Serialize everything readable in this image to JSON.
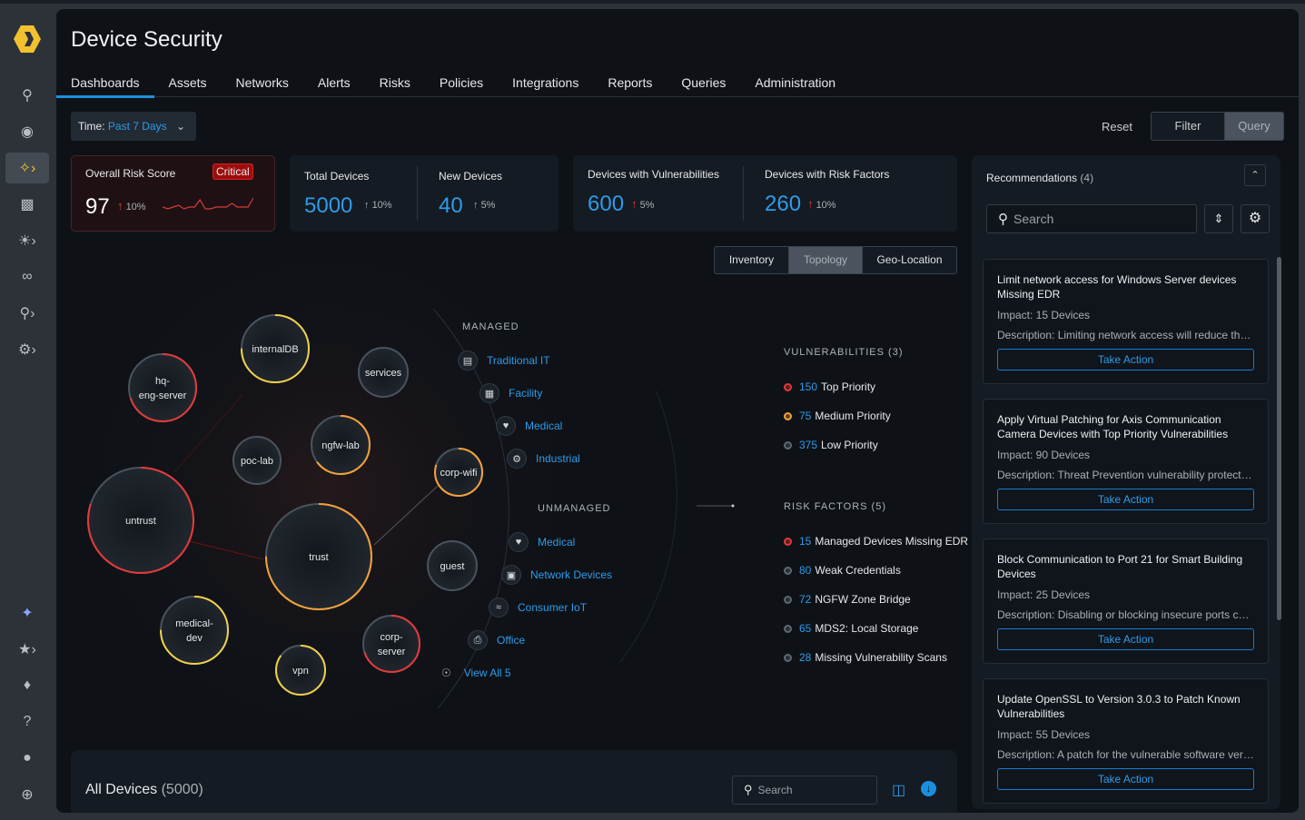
{
  "app": {
    "title": "Device Security"
  },
  "colors": {
    "accent": "#2e9bea",
    "critical": "#e5393a",
    "high": "#f5a13a",
    "medium": "#f2d04a",
    "low": "#5d6873",
    "brand": "#f2c12e"
  },
  "sidebar": {
    "items": [
      {
        "icon": "search-icon"
      },
      {
        "icon": "radar-icon"
      },
      {
        "icon": "activity-icon",
        "active": true
      },
      {
        "icon": "report-icon"
      },
      {
        "icon": "alert-light-icon"
      },
      {
        "icon": "binoculars-icon"
      },
      {
        "icon": "search-settings-icon"
      },
      {
        "icon": "gear-icon"
      },
      {
        "icon": "sparkle-icon"
      },
      {
        "icon": "star-icon"
      },
      {
        "icon": "bell-icon"
      },
      {
        "icon": "help-icon"
      },
      {
        "icon": "user-icon"
      },
      {
        "icon": "expand-icon"
      }
    ]
  },
  "tabs": [
    "Dashboards",
    "Assets",
    "Networks",
    "Alerts",
    "Risks",
    "Policies",
    "Integrations",
    "Reports",
    "Queries",
    "Administration"
  ],
  "toolbar": {
    "time_label": "Time:",
    "time_value": "Past 7 Days",
    "reset": "Reset",
    "filter": "Filter",
    "query": "Query"
  },
  "kpis": {
    "risk": {
      "label": "Overall Risk Score",
      "badge": "Critical",
      "value": "97",
      "delta": "10%",
      "sparkline": [
        5,
        4,
        5,
        6,
        4,
        5,
        5,
        9,
        4,
        4,
        5,
        5,
        5,
        7,
        5,
        5,
        5,
        10
      ]
    },
    "total": {
      "label": "Total Devices",
      "value": "5000",
      "delta": "10%"
    },
    "new": {
      "label": "New Devices",
      "value": "40",
      "delta": "5%"
    },
    "vuln": {
      "label": "Devices with Vulnerabilities",
      "value": "600",
      "delta": "5%"
    },
    "riskf": {
      "label": "Devices with Risk Factors",
      "value": "260",
      "delta": "10%"
    }
  },
  "view_tabs": {
    "items": [
      "Inventory",
      "Topology",
      "Geo-Location"
    ],
    "active": "Topology"
  },
  "topology": {
    "nodes": [
      {
        "name": "internalDB",
        "ring": "#f2d04a",
        "fill": 0.75
      },
      {
        "name": "hq-eng-server",
        "ring": "#e5393a",
        "fill": 0.7
      },
      {
        "name": "services",
        "ring": "#5d6873",
        "fill": 0
      },
      {
        "name": "ngfw-lab",
        "ring": "#f5a13a",
        "fill": 0.65
      },
      {
        "name": "poc-lab",
        "ring": "#5d6873",
        "fill": 0
      },
      {
        "name": "corp-wifi",
        "ring": "#f5a13a",
        "fill": 0.8
      },
      {
        "name": "untrust",
        "ring": "#e5393a",
        "fill": 0.8
      },
      {
        "name": "trust",
        "ring": "#f5a13a",
        "fill": 0.75
      },
      {
        "name": "guest",
        "ring": "#5d6873",
        "fill": 0
      },
      {
        "name": "medical-dev",
        "ring": "#f2d04a",
        "fill": 0.75
      },
      {
        "name": "corp-server",
        "ring": "#e5393a",
        "fill": 0.7
      },
      {
        "name": "vpn",
        "ring": "#f2d04a",
        "fill": 0.85
      }
    ],
    "managed_label": "MANAGED",
    "managed": [
      {
        "label": "Traditional IT",
        "icon": "laptop-icon"
      },
      {
        "label": "Facility",
        "icon": "building-icon"
      },
      {
        "label": "Medical",
        "icon": "heart-icon"
      },
      {
        "label": "Industrial",
        "icon": "factory-icon"
      }
    ],
    "unmanaged_label": "UNMANAGED",
    "unmanaged": [
      {
        "label": "Medical",
        "icon": "heart-icon"
      },
      {
        "label": "Network Devices",
        "icon": "network-icon"
      },
      {
        "label": "Consumer IoT",
        "icon": "wifi-icon"
      },
      {
        "label": "Office",
        "icon": "printer-icon"
      }
    ],
    "view_all": "View All 5"
  },
  "vulnerabilities": {
    "title": "VULNERABILITIES (3)",
    "items": [
      {
        "count": "150",
        "label": "Top Priority",
        "color": "#e5393a"
      },
      {
        "count": "75",
        "label": "Medium Priority",
        "color": "#f5a13a"
      },
      {
        "count": "375",
        "label": "Low Priority",
        "color": "#5d6873"
      }
    ]
  },
  "risk_factors": {
    "title": "RISK FACTORS (5)",
    "items": [
      {
        "count": "15",
        "label": "Managed Devices Missing EDR",
        "color": "#e5393a"
      },
      {
        "count": "80",
        "label": "Weak Credentials",
        "color": "#5d6873"
      },
      {
        "count": "72",
        "label": "NGFW Zone Bridge",
        "color": "#5d6873"
      },
      {
        "count": "65",
        "label": "MDS2: Local Storage",
        "color": "#5d6873"
      },
      {
        "count": "28",
        "label": "Missing Vulnerability Scans",
        "color": "#5d6873"
      }
    ]
  },
  "recommendations": {
    "title": "Recommendations",
    "count": "(4)",
    "search_placeholder": "Search",
    "items": [
      {
        "title": "Limit network access for Windows Server devices Missing EDR",
        "impact": "Impact: 15 Devices",
        "description": "Description:  Limiting network access will reduce the attack surface",
        "action": "Take Action"
      },
      {
        "title": "Apply Virtual Patching for Axis Communication Camera Devices with Top Priority Vulnerabilities",
        "impact": "Impact: 90 Devices",
        "description": "Description:  Threat Prevention vulnerability protection",
        "action": "Take Action"
      },
      {
        "title": "Block Communication to Port 21 for Smart Building Devices",
        "impact": "Impact: 25 Devices",
        "description": "Description:  Disabling or blocking insecure ports can reduce risk",
        "action": "Take Action"
      },
      {
        "title": "Update OpenSSL to Version 3.0.3 to Patch Known Vulnerabilities",
        "impact": "Impact: 55 Devices",
        "description": "Description:  A patch for the vulnerable software version",
        "action": "Take Action"
      }
    ]
  },
  "all_devices": {
    "title": "All Devices",
    "count": "(5000)",
    "search_placeholder": "Search"
  }
}
